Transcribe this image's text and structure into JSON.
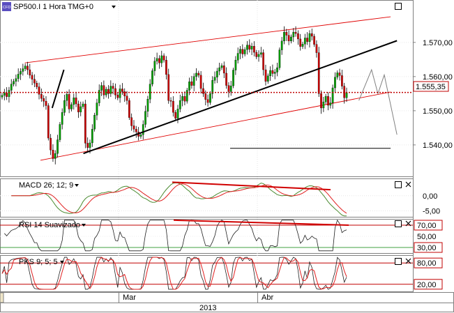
{
  "chart_data": {
    "type": "candlestick",
    "main": {
      "title": "SP500.I 1 Hora TMG+0",
      "icon_label": "CFD",
      "y_ticks": [
        "1.570,00",
        "1.560,00",
        "1.550,00",
        "1.540,00"
      ],
      "y_tick_values": [
        1570,
        1560,
        1550,
        1540
      ],
      "ylim": [
        1531,
        1582
      ],
      "current_price": "1.555,35",
      "current_price_value": 1555.35,
      "close_series": [
        1554.5,
        1555.2,
        1554.1,
        1556.0,
        1557.8,
        1558.6,
        1559.4,
        1560.7,
        1561.5,
        1562.3,
        1563.1,
        1562.0,
        1560.4,
        1559.2,
        1558.1,
        1557.0,
        1554.8,
        1553.6,
        1552.8,
        1551.5,
        1542.0,
        1538.5,
        1536.0,
        1537.5,
        1541.5,
        1546.0,
        1549.5,
        1553.0,
        1554.8,
        1550.5,
        1551.8,
        1553.8,
        1552.0,
        1549.6,
        1551.2,
        1552.0,
        1540.5,
        1539.2,
        1540.6,
        1544.6,
        1548.7,
        1552.3,
        1556.0,
        1557.4,
        1554.6,
        1556.3,
        1555.0,
        1557.2,
        1556.5,
        1554.6,
        1553.8,
        1556.4,
        1555.6,
        1554.3,
        1553.0,
        1548.0,
        1545.6,
        1544.6,
        1543.8,
        1542.5,
        1543.0,
        1546.0,
        1549.8,
        1553.4,
        1557.8,
        1561.7,
        1564.5,
        1565.3,
        1564.0,
        1566.1,
        1564.8,
        1560.6,
        1553.0,
        1552.8,
        1549.5,
        1547.8,
        1550.5,
        1553.0,
        1554.2,
        1552.8,
        1556.0,
        1558.5,
        1557.4,
        1560.0,
        1561.0,
        1560.4,
        1556.5,
        1555.0,
        1553.3,
        1552.4,
        1555.0,
        1558.9,
        1559.8,
        1561.6,
        1562.6,
        1563.2,
        1561.0,
        1557.4,
        1555.6,
        1557.3,
        1561.9,
        1564.8,
        1566.8,
        1568.0,
        1566.6,
        1567.9,
        1569.2,
        1568.0,
        1568.9,
        1567.1,
        1565.8,
        1566.5,
        1567.0,
        1562.0,
        1558.6,
        1560.2,
        1561.8,
        1560.9,
        1561.3,
        1562.6,
        1567.8,
        1570.4,
        1573.0,
        1572.1,
        1570.4,
        1571.6,
        1573.0,
        1572.6,
        1571.0,
        1568.8,
        1569.5,
        1571.3,
        1570.2,
        1572.6,
        1571.8,
        1569.4,
        1567.0,
        1555.0,
        1550.8,
        1552.6,
        1554.2,
        1551.6,
        1552.3,
        1556.7,
        1559.8,
        1561.1,
        1560.3,
        1557.2,
        1553.8,
        1555.3
      ],
      "black_lines": [
        {
          "from": [
            "Feb-11",
            1550.8
          ],
          "to": [
            "Feb-14",
            1562.0
          ]
        },
        {
          "from": [
            "Feb-19",
            1537.5
          ],
          "to": [
            "Abr-23",
            1570.5
          ]
        },
        {
          "from": [
            "Mar-26",
            1539.0
          ],
          "to": [
            "Abr-22",
            1539.0
          ]
        }
      ],
      "red_channel": [
        {
          "from": [
            "Feb-04",
            1564.0
          ],
          "to": [
            "Abr-22",
            1577.5
          ]
        },
        {
          "from": [
            "Feb-08",
            1535.5
          ],
          "to": [
            "Abr-22",
            1555.5
          ]
        }
      ],
      "gray_projection": [
        [
          "Abr-17",
          1553.0
        ],
        [
          "Abr-19",
          1562.0
        ],
        [
          "Abr-20",
          1555.0
        ],
        [
          "Abr-21",
          1560.5
        ],
        [
          "Abr-23",
          1543.0
        ]
      ]
    },
    "macd": {
      "label": "MACD 26; 12; 9",
      "y_ticks": [
        "0,00",
        "-5,00"
      ],
      "y_tick_values": [
        0,
        -5
      ],
      "ylim": [
        -7,
        5.5
      ],
      "divergence_line": {
        "from": 4.5,
        "to": 2.0
      }
    },
    "rsi": {
      "label": "RSI 14 Suavizado",
      "y_ticks": [
        "70,00",
        "50,00",
        "30,00"
      ],
      "y_tick_values": [
        70,
        50,
        30
      ],
      "highlight_levels": [
        "70,00",
        "30,00"
      ],
      "ylim": [
        20,
        80
      ],
      "divergence_line": {
        "from": 79,
        "to": 70
      }
    },
    "pks": {
      "label": "PKS 9; 5; 5",
      "y_ticks": [
        "80,00",
        "20,00"
      ],
      "y_tick_values": [
        80,
        20
      ],
      "ylim": [
        0,
        100
      ]
    },
    "x_axis": {
      "month_labels": [
        "Mar",
        "Abr"
      ],
      "year_label": "2013"
    },
    "colors": {
      "up_candle": "#00a000",
      "down_candle": "#d00000",
      "red_line": "#e00000",
      "macd_line": "#4a8a30",
      "signal_line": "#e02020",
      "rsi_level": "#c00000"
    }
  }
}
